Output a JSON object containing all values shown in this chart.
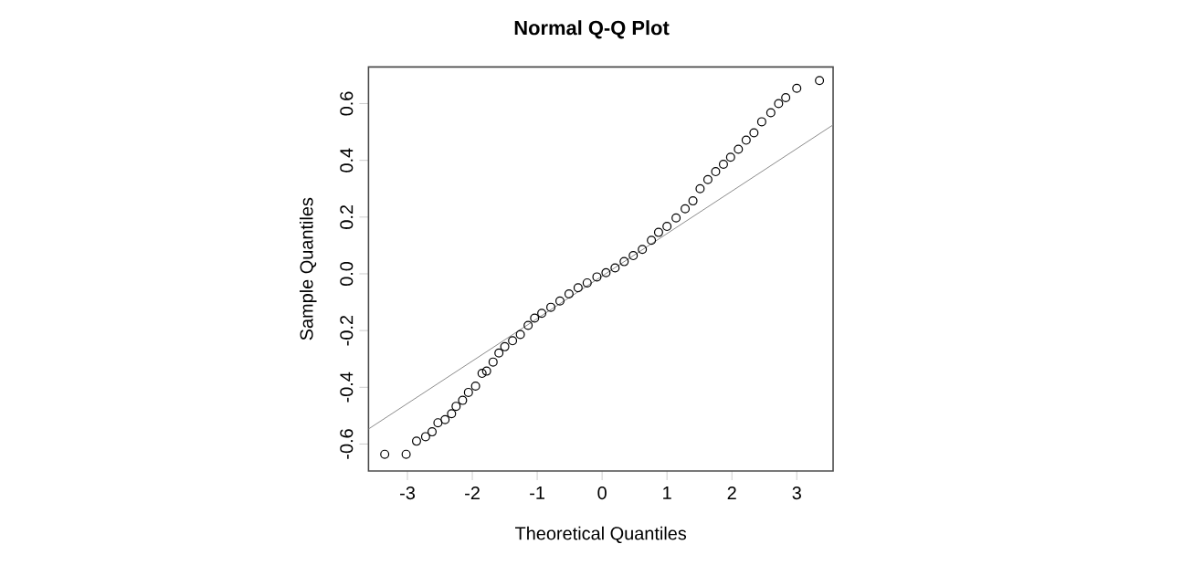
{
  "chart_data": {
    "type": "scatter",
    "title": "Normal Q-Q Plot",
    "xlabel": "Theoretical Quantiles",
    "ylabel": "Sample Quantiles",
    "xlim": [
      -3.6,
      3.56
    ],
    "ylim": [
      -0.695,
      0.729
    ],
    "xticks": [
      -3,
      -2,
      -1,
      0,
      1,
      2,
      3
    ],
    "yticks": [
      -0.6,
      -0.4,
      -0.2,
      {
        "value": 0,
        "label": "0.0"
      },
      0.2,
      0.4,
      0.6
    ],
    "series": [
      {
        "color": "#000000",
        "marker": "circle",
        "x": [
          -3.35,
          -3.02,
          -2.86,
          -2.72,
          -2.62,
          -2.53,
          -2.42,
          -2.32,
          -2.25,
          -2.15,
          -2.06,
          -1.95,
          -1.85,
          -1.78,
          -1.68,
          -1.59,
          -1.5,
          -1.38,
          -1.26,
          -1.14,
          -1.04,
          -0.93,
          -0.79,
          -0.65,
          -0.51,
          -0.37,
          -0.23,
          -0.08,
          0.06,
          0.2,
          0.34,
          0.48,
          0.62,
          0.76,
          0.87,
          1.0,
          1.14,
          1.28,
          1.4,
          1.51,
          1.63,
          1.75,
          1.87,
          1.98,
          2.1,
          2.22,
          2.34,
          2.46,
          2.6,
          2.72,
          2.83,
          3.0,
          3.35
        ],
        "values": [
          -0.636,
          -0.636,
          -0.59,
          -0.574,
          -0.557,
          -0.525,
          -0.514,
          -0.493,
          -0.467,
          -0.446,
          -0.418,
          -0.396,
          -0.351,
          -0.343,
          -0.311,
          -0.279,
          -0.257,
          -0.236,
          -0.214,
          -0.182,
          -0.156,
          -0.139,
          -0.118,
          -0.096,
          -0.071,
          -0.049,
          -0.032,
          -0.011,
          0.004,
          0.021,
          0.043,
          0.064,
          0.086,
          0.118,
          0.146,
          0.167,
          0.197,
          0.229,
          0.257,
          0.3,
          0.332,
          0.36,
          0.386,
          0.411,
          0.439,
          0.471,
          0.497,
          0.536,
          0.568,
          0.6,
          0.621,
          0.654,
          0.681
        ]
      },
      {
        "type": "line",
        "color": "#8c8c8c",
        "line_style": "solid",
        "x": [
          -3.6,
          3.56
        ],
        "values": [
          -0.547,
          0.525
        ]
      }
    ]
  }
}
